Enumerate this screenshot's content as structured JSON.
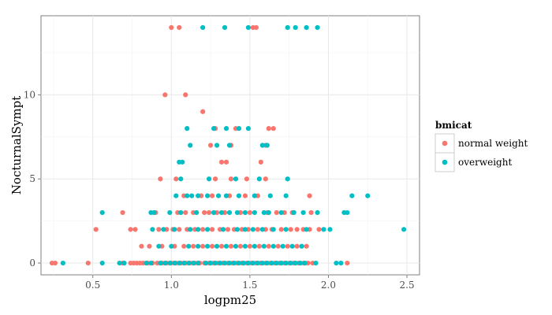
{
  "chart_data": {
    "type": "scatter",
    "title": "",
    "xlabel": "logpm25",
    "ylabel": "NocturnalSympt",
    "xlim": [
      0.17,
      2.58
    ],
    "ylim": [
      -0.7,
      14.7
    ],
    "xticks": [
      0.5,
      1.0,
      1.5,
      2.0,
      2.5
    ],
    "xtick_labels": [
      "0.5",
      "1.0",
      "1.5",
      "2.0",
      "2.5"
    ],
    "yticks": [
      0,
      5,
      10
    ],
    "ytick_labels": [
      "0",
      "5",
      "10"
    ],
    "grid": true,
    "legend": {
      "title": "bmicat",
      "position": "right"
    },
    "series": [
      {
        "name": "normal weight",
        "color": "#F8766D",
        "points": [
          [
            0.24,
            0
          ],
          [
            0.26,
            0
          ],
          [
            0.47,
            0
          ],
          [
            0.69,
            0
          ],
          [
            0.74,
            0
          ],
          [
            0.76,
            0
          ],
          [
            0.78,
            0
          ],
          [
            0.8,
            0
          ],
          [
            0.82,
            0
          ],
          [
            0.85,
            0
          ],
          [
            0.88,
            0
          ],
          [
            0.91,
            0
          ],
          [
            0.94,
            0
          ],
          [
            0.97,
            0
          ],
          [
            1.0,
            0
          ],
          [
            1.03,
            0
          ],
          [
            1.06,
            0
          ],
          [
            1.09,
            0
          ],
          [
            1.12,
            0
          ],
          [
            1.15,
            0
          ],
          [
            1.18,
            0
          ],
          [
            1.21,
            0
          ],
          [
            1.24,
            0
          ],
          [
            1.27,
            0
          ],
          [
            1.3,
            0
          ],
          [
            1.33,
            0
          ],
          [
            1.36,
            0
          ],
          [
            1.39,
            0
          ],
          [
            1.42,
            0
          ],
          [
            1.45,
            0
          ],
          [
            1.48,
            0
          ],
          [
            1.51,
            0
          ],
          [
            1.54,
            0
          ],
          [
            1.57,
            0
          ],
          [
            1.6,
            0
          ],
          [
            1.63,
            0
          ],
          [
            1.66,
            0
          ],
          [
            1.69,
            0
          ],
          [
            1.72,
            0
          ],
          [
            1.75,
            0
          ],
          [
            1.78,
            0
          ],
          [
            1.81,
            0
          ],
          [
            1.84,
            0
          ],
          [
            1.87,
            0
          ],
          [
            1.9,
            0
          ],
          [
            2.12,
            0
          ],
          [
            0.81,
            1
          ],
          [
            0.86,
            1
          ],
          [
            0.94,
            1
          ],
          [
            1.02,
            1
          ],
          [
            1.08,
            1
          ],
          [
            1.14,
            1
          ],
          [
            1.2,
            1
          ],
          [
            1.26,
            1
          ],
          [
            1.32,
            1
          ],
          [
            1.38,
            1
          ],
          [
            1.44,
            1
          ],
          [
            1.5,
            1
          ],
          [
            1.56,
            1
          ],
          [
            1.62,
            1
          ],
          [
            1.68,
            1
          ],
          [
            1.74,
            1
          ],
          [
            1.8,
            1
          ],
          [
            1.86,
            1
          ],
          [
            0.52,
            2
          ],
          [
            0.74,
            2
          ],
          [
            0.77,
            2
          ],
          [
            0.92,
            2
          ],
          [
            0.97,
            2
          ],
          [
            1.01,
            2
          ],
          [
            1.05,
            2
          ],
          [
            1.1,
            2
          ],
          [
            1.15,
            2
          ],
          [
            1.2,
            2
          ],
          [
            1.26,
            2
          ],
          [
            1.31,
            2
          ],
          [
            1.36,
            2
          ],
          [
            1.4,
            2
          ],
          [
            1.45,
            2
          ],
          [
            1.49,
            2
          ],
          [
            1.55,
            2
          ],
          [
            1.6,
            2
          ],
          [
            1.64,
            2
          ],
          [
            1.7,
            2
          ],
          [
            1.76,
            2
          ],
          [
            1.8,
            2
          ],
          [
            1.84,
            2
          ],
          [
            1.88,
            2
          ],
          [
            1.94,
            2
          ],
          [
            0.69,
            3
          ],
          [
            0.9,
            3
          ],
          [
            1.04,
            3
          ],
          [
            1.09,
            3
          ],
          [
            1.14,
            3
          ],
          [
            1.21,
            3
          ],
          [
            1.24,
            3
          ],
          [
            1.29,
            3
          ],
          [
            1.34,
            3
          ],
          [
            1.44,
            3
          ],
          [
            1.5,
            3
          ],
          [
            1.61,
            3
          ],
          [
            1.67,
            3
          ],
          [
            1.72,
            3
          ],
          [
            1.77,
            3
          ],
          [
            1.89,
            3
          ],
          [
            1.08,
            4
          ],
          [
            1.19,
            4
          ],
          [
            1.26,
            4
          ],
          [
            1.37,
            4
          ],
          [
            1.47,
            4
          ],
          [
            1.55,
            4
          ],
          [
            1.88,
            4
          ],
          [
            0.93,
            5
          ],
          [
            1.03,
            5
          ],
          [
            1.28,
            5
          ],
          [
            1.38,
            5
          ],
          [
            1.48,
            5
          ],
          [
            1.6,
            5
          ],
          [
            1.32,
            6
          ],
          [
            1.35,
            6
          ],
          [
            1.57,
            6
          ],
          [
            1.25,
            7
          ],
          [
            1.38,
            7
          ],
          [
            1.6,
            7
          ],
          [
            1.28,
            8
          ],
          [
            1.41,
            8
          ],
          [
            1.62,
            8
          ],
          [
            1.65,
            8
          ],
          [
            1.2,
            9
          ],
          [
            0.96,
            10
          ],
          [
            1.09,
            10
          ],
          [
            1.0,
            14
          ],
          [
            1.05,
            14
          ],
          [
            1.52,
            14
          ],
          [
            1.54,
            14
          ]
        ]
      },
      {
        "name": "overweight",
        "color": "#00BFC4",
        "points": [
          [
            0.31,
            0
          ],
          [
            0.56,
            0
          ],
          [
            0.67,
            0
          ],
          [
            0.7,
            0
          ],
          [
            0.84,
            0
          ],
          [
            0.87,
            0
          ],
          [
            0.93,
            0
          ],
          [
            0.96,
            0
          ],
          [
            0.99,
            0
          ],
          [
            1.02,
            0
          ],
          [
            1.05,
            0
          ],
          [
            1.08,
            0
          ],
          [
            1.11,
            0
          ],
          [
            1.14,
            0
          ],
          [
            1.17,
            0
          ],
          [
            1.22,
            0
          ],
          [
            1.25,
            0
          ],
          [
            1.28,
            0
          ],
          [
            1.31,
            0
          ],
          [
            1.34,
            0
          ],
          [
            1.37,
            0
          ],
          [
            1.4,
            0
          ],
          [
            1.43,
            0
          ],
          [
            1.46,
            0
          ],
          [
            1.49,
            0
          ],
          [
            1.52,
            0
          ],
          [
            1.55,
            0
          ],
          [
            1.58,
            0
          ],
          [
            1.61,
            0
          ],
          [
            1.64,
            0
          ],
          [
            1.67,
            0
          ],
          [
            1.7,
            0
          ],
          [
            1.73,
            0
          ],
          [
            1.76,
            0
          ],
          [
            1.79,
            0
          ],
          [
            1.82,
            0
          ],
          [
            1.85,
            0
          ],
          [
            1.92,
            0
          ],
          [
            2.05,
            0
          ],
          [
            2.08,
            0
          ],
          [
            0.92,
            1
          ],
          [
            1.0,
            1
          ],
          [
            1.11,
            1
          ],
          [
            1.17,
            1
          ],
          [
            1.23,
            1
          ],
          [
            1.29,
            1
          ],
          [
            1.35,
            1
          ],
          [
            1.41,
            1
          ],
          [
            1.47,
            1
          ],
          [
            1.53,
            1
          ],
          [
            1.59,
            1
          ],
          [
            1.65,
            1
          ],
          [
            1.71,
            1
          ],
          [
            1.77,
            1
          ],
          [
            1.83,
            1
          ],
          [
            0.88,
            2
          ],
          [
            0.95,
            2
          ],
          [
            1.02,
            2
          ],
          [
            1.12,
            2
          ],
          [
            1.17,
            2
          ],
          [
            1.23,
            2
          ],
          [
            1.33,
            2
          ],
          [
            1.42,
            2
          ],
          [
            1.47,
            2
          ],
          [
            1.52,
            2
          ],
          [
            1.58,
            2
          ],
          [
            1.65,
            2
          ],
          [
            1.73,
            2
          ],
          [
            1.86,
            2
          ],
          [
            1.97,
            2
          ],
          [
            2.01,
            2
          ],
          [
            2.48,
            2
          ],
          [
            0.56,
            3
          ],
          [
            0.87,
            3
          ],
          [
            0.89,
            3
          ],
          [
            0.99,
            3
          ],
          [
            1.06,
            3
          ],
          [
            1.16,
            3
          ],
          [
            1.27,
            3
          ],
          [
            1.32,
            3
          ],
          [
            1.37,
            3
          ],
          [
            1.42,
            3
          ],
          [
            1.47,
            3
          ],
          [
            1.53,
            3
          ],
          [
            1.59,
            3
          ],
          [
            1.62,
            3
          ],
          [
            1.7,
            3
          ],
          [
            1.78,
            3
          ],
          [
            1.84,
            3
          ],
          [
            1.93,
            3
          ],
          [
            2.1,
            3
          ],
          [
            2.12,
            3
          ],
          [
            1.03,
            4
          ],
          [
            1.1,
            4
          ],
          [
            1.13,
            4
          ],
          [
            1.17,
            4
          ],
          [
            1.23,
            4
          ],
          [
            1.3,
            4
          ],
          [
            1.35,
            4
          ],
          [
            1.43,
            4
          ],
          [
            1.53,
            4
          ],
          [
            1.63,
            4
          ],
          [
            1.73,
            4
          ],
          [
            2.15,
            4
          ],
          [
            2.25,
            4
          ],
          [
            1.06,
            5
          ],
          [
            1.24,
            5
          ],
          [
            1.41,
            5
          ],
          [
            1.56,
            5
          ],
          [
            1.74,
            5
          ],
          [
            1.05,
            6
          ],
          [
            1.07,
            6
          ],
          [
            1.12,
            7
          ],
          [
            1.29,
            7
          ],
          [
            1.37,
            7
          ],
          [
            1.58,
            7
          ],
          [
            1.61,
            7
          ],
          [
            1.1,
            8
          ],
          [
            1.27,
            8
          ],
          [
            1.35,
            8
          ],
          [
            1.43,
            8
          ],
          [
            1.49,
            8
          ],
          [
            1.2,
            14
          ],
          [
            1.34,
            14
          ],
          [
            1.49,
            14
          ],
          [
            1.74,
            14
          ],
          [
            1.79,
            14
          ],
          [
            1.86,
            14
          ],
          [
            1.93,
            14
          ]
        ]
      }
    ]
  }
}
